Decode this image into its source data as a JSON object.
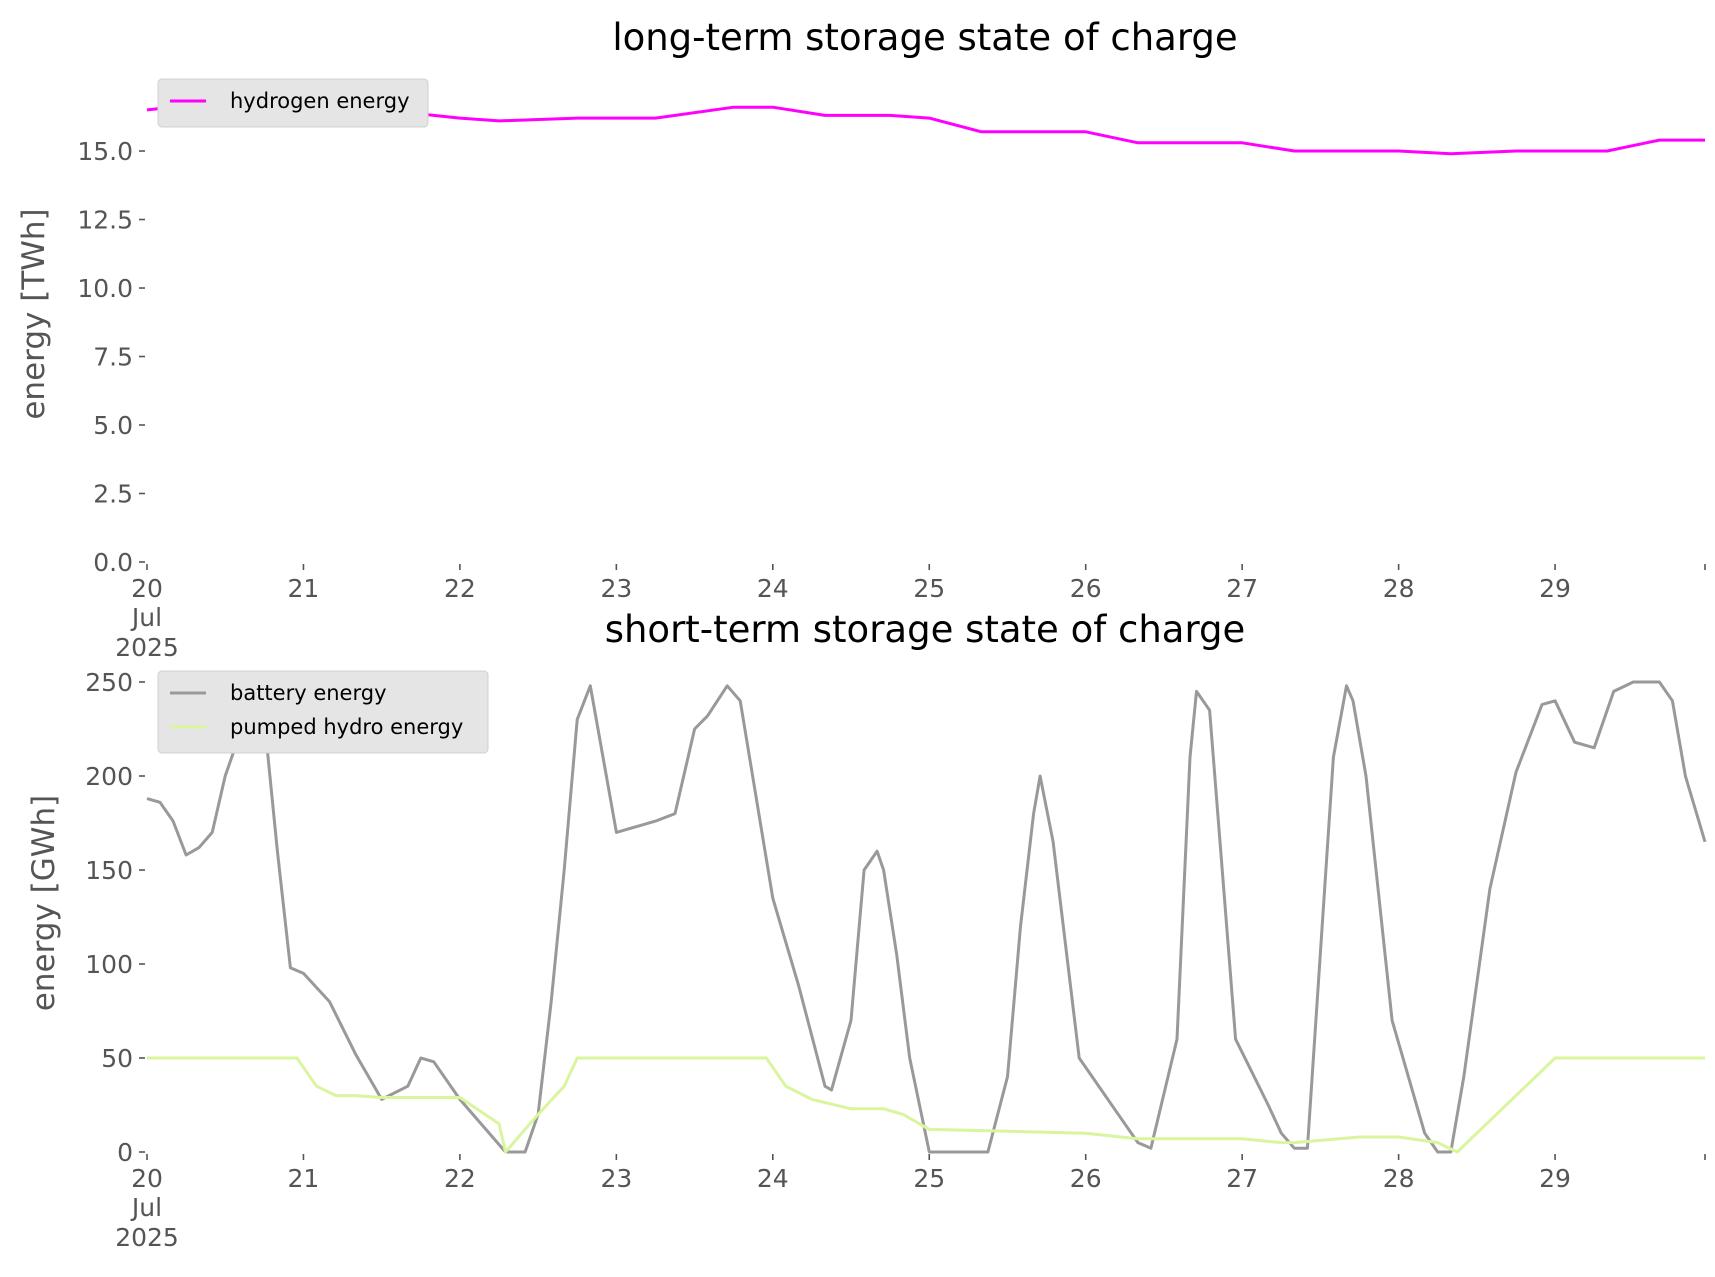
{
  "chart_data": [
    {
      "type": "line",
      "title": "long-term storage state of charge",
      "ylabel": "energy [TWh]",
      "xlabel": "",
      "ylim": [
        0,
        17.3
      ],
      "xlim": [
        "2025-07-20",
        "2025-07-29 23:00"
      ],
      "yticks": [
        "0.0",
        "2.5",
        "5.0",
        "7.5",
        "10.0",
        "12.5",
        "15.0"
      ],
      "xticks": [
        "20",
        "21",
        "22",
        "23",
        "24",
        "25",
        "26",
        "27",
        "28",
        "29"
      ],
      "xtick_sublabels": [
        "Jul",
        "2025"
      ],
      "grid": false,
      "legend_position": "upper-left",
      "series": [
        {
          "name": "hydrogen energy",
          "color": "#ff00ff",
          "x": [
            "2025-07-20 00:00",
            "2025-07-20 12:00",
            "2025-07-21 00:00",
            "2025-07-21 12:00",
            "2025-07-22 00:00",
            "2025-07-22 06:00",
            "2025-07-22 18:00",
            "2025-07-23 06:00",
            "2025-07-23 18:00",
            "2025-07-24 00:00",
            "2025-07-24 08:00",
            "2025-07-24 18:00",
            "2025-07-25 00:00",
            "2025-07-25 08:00",
            "2025-07-25 18:00",
            "2025-07-26 00:00",
            "2025-07-26 08:00",
            "2025-07-26 18:00",
            "2025-07-27 00:00",
            "2025-07-27 08:00",
            "2025-07-27 18:00",
            "2025-07-28 00:00",
            "2025-07-28 08:00",
            "2025-07-28 18:00",
            "2025-07-29 00:00",
            "2025-07-29 08:00",
            "2025-07-29 16:00",
            "2025-07-29 23:00"
          ],
          "y": [
            16.5,
            16.8,
            16.8,
            16.5,
            16.2,
            16.1,
            16.2,
            16.2,
            16.6,
            16.6,
            16.3,
            16.3,
            16.2,
            15.7,
            15.7,
            15.7,
            15.3,
            15.3,
            15.3,
            15.0,
            15.0,
            15.0,
            14.9,
            15.0,
            15.0,
            15.0,
            15.4,
            15.4
          ]
        }
      ]
    },
    {
      "type": "line",
      "title": "short-term storage state of charge",
      "ylabel": "energy [GWh]",
      "xlabel": "",
      "ylim": [
        0,
        250
      ],
      "xlim": [
        "2025-07-20",
        "2025-07-29 23:00"
      ],
      "yticks": [
        "0",
        "50",
        "100",
        "150",
        "200",
        "250"
      ],
      "xticks": [
        "20",
        "21",
        "22",
        "23",
        "24",
        "25",
        "26",
        "27",
        "28",
        "29"
      ],
      "xtick_sublabels": [
        "Jul",
        "2025"
      ],
      "grid": false,
      "legend_position": "upper-left",
      "series": [
        {
          "name": "battery energy",
          "color": "#999999",
          "x": [
            "2025-07-20 00:00",
            "2025-07-20 02:00",
            "2025-07-20 04:00",
            "2025-07-20 06:00",
            "2025-07-20 08:00",
            "2025-07-20 10:00",
            "2025-07-20 12:00",
            "2025-07-20 14:00",
            "2025-07-20 16:00",
            "2025-07-20 18:00",
            "2025-07-20 20:00",
            "2025-07-20 22:00",
            "2025-07-21 00:00",
            "2025-07-21 04:00",
            "2025-07-21 08:00",
            "2025-07-21 12:00",
            "2025-07-21 16:00",
            "2025-07-21 18:00",
            "2025-07-21 20:00",
            "2025-07-22 00:00",
            "2025-07-22 07:00",
            "2025-07-22 10:00",
            "2025-07-22 12:00",
            "2025-07-22 14:00",
            "2025-07-22 16:00",
            "2025-07-22 18:00",
            "2025-07-22 20:00",
            "2025-07-23 00:00",
            "2025-07-23 06:00",
            "2025-07-23 09:00",
            "2025-07-23 12:00",
            "2025-07-23 14:00",
            "2025-07-23 17:00",
            "2025-07-23 19:00",
            "2025-07-24 00:00",
            "2025-07-24 04:00",
            "2025-07-24 08:00",
            "2025-07-24 09:00",
            "2025-07-24 12:00",
            "2025-07-24 14:00",
            "2025-07-24 16:00",
            "2025-07-24 17:00",
            "2025-07-24 19:00",
            "2025-07-24 21:00",
            "2025-07-25 00:00",
            "2025-07-25 09:00",
            "2025-07-25 12:00",
            "2025-07-25 14:00",
            "2025-07-25 16:00",
            "2025-07-25 17:00",
            "2025-07-25 19:00",
            "2025-07-25 23:00",
            "2025-07-26 06:00",
            "2025-07-26 08:00",
            "2025-07-26 10:00",
            "2025-07-26 14:00",
            "2025-07-26 16:00",
            "2025-07-26 17:00",
            "2025-07-26 19:00",
            "2025-07-26 23:00",
            "2025-07-27 04:00",
            "2025-07-27 06:00",
            "2025-07-27 08:00",
            "2025-07-27 10:00",
            "2025-07-27 14:00",
            "2025-07-27 16:00",
            "2025-07-27 17:00",
            "2025-07-27 19:00",
            "2025-07-27 23:00",
            "2025-07-28 04:00",
            "2025-07-28 06:00",
            "2025-07-28 08:00",
            "2025-07-28 10:00",
            "2025-07-28 14:00",
            "2025-07-28 18:00",
            "2025-07-28 22:00",
            "2025-07-29 00:00",
            "2025-07-29 03:00",
            "2025-07-29 06:00",
            "2025-07-29 09:00",
            "2025-07-29 12:00",
            "2025-07-29 16:00",
            "2025-07-29 18:00",
            "2025-07-29 20:00",
            "2025-07-29 23:00"
          ],
          "y": [
            188,
            186,
            176,
            158,
            162,
            170,
            200,
            220,
            247,
            230,
            160,
            98,
            95,
            80,
            52,
            28,
            35,
            50,
            48,
            28,
            0,
            0,
            20,
            80,
            150,
            230,
            248,
            170,
            176,
            180,
            225,
            232,
            248,
            240,
            135,
            88,
            35,
            33,
            70,
            150,
            160,
            150,
            105,
            50,
            0,
            0,
            40,
            120,
            180,
            200,
            165,
            50,
            15,
            5,
            2,
            60,
            210,
            245,
            235,
            60,
            25,
            10,
            2,
            2,
            210,
            248,
            240,
            200,
            70,
            10,
            0,
            0,
            40,
            140,
            202,
            238,
            240,
            218,
            215,
            245,
            250,
            250,
            240,
            200,
            165
          ]
        },
        {
          "name": "pumped hydro energy",
          "color": "#d9f59e",
          "x": [
            "2025-07-20 00:00",
            "2025-07-20 23:00",
            "2025-07-21 02:00",
            "2025-07-21 05:00",
            "2025-07-21 08:00",
            "2025-07-21 12:00",
            "2025-07-22 00:00",
            "2025-07-22 06:00",
            "2025-07-22 07:00",
            "2025-07-22 12:00",
            "2025-07-22 16:00",
            "2025-07-22 18:00",
            "2025-07-23 00:00",
            "2025-07-23 23:00",
            "2025-07-24 02:00",
            "2025-07-24 06:00",
            "2025-07-24 12:00",
            "2025-07-24 17:00",
            "2025-07-24 20:00",
            "2025-07-25 00:00",
            "2025-07-25 12:00",
            "2025-07-26 00:00",
            "2025-07-26 08:00",
            "2025-07-27 00:00",
            "2025-07-27 06:00",
            "2025-07-27 08:00",
            "2025-07-27 18:00",
            "2025-07-28 00:00",
            "2025-07-28 06:00",
            "2025-07-28 09:00",
            "2025-07-28 12:00",
            "2025-07-28 18:00",
            "2025-07-29 00:00",
            "2025-07-29 23:00"
          ],
          "y": [
            50,
            50,
            35,
            30,
            30,
            29,
            29,
            15,
            0,
            20,
            35,
            50,
            50,
            50,
            35,
            28,
            23,
            23,
            20,
            12,
            11,
            10,
            7,
            7,
            5,
            5,
            8,
            8,
            5,
            0,
            10,
            30,
            50,
            50
          ]
        }
      ]
    }
  ]
}
